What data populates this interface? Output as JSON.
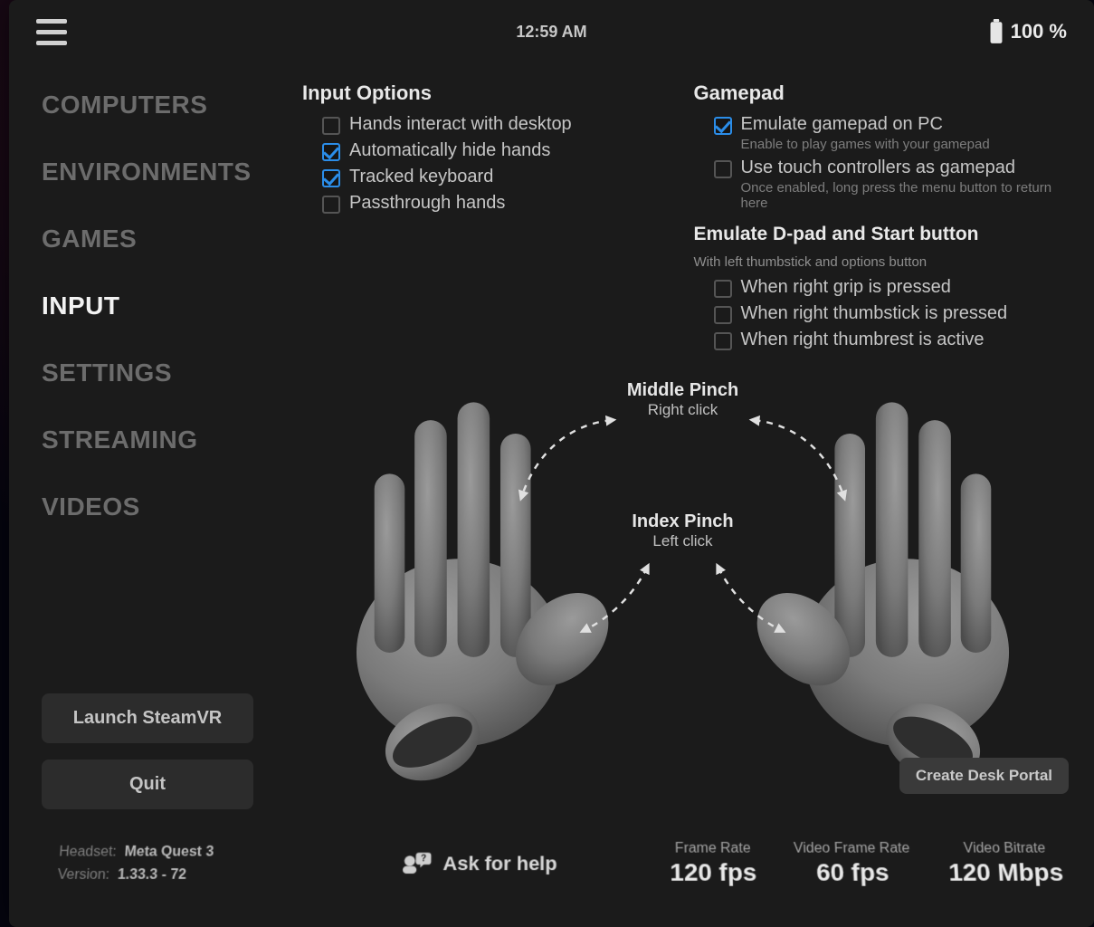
{
  "topbar": {
    "clock": "12:59 AM",
    "battery_pct": "100 %"
  },
  "sidebar": {
    "items": [
      {
        "label": "COMPUTERS"
      },
      {
        "label": "ENVIRONMENTS"
      },
      {
        "label": "GAMES"
      },
      {
        "label": "INPUT"
      },
      {
        "label": "SETTINGS"
      },
      {
        "label": "STREAMING"
      },
      {
        "label": "VIDEOS"
      }
    ],
    "active_index": 3,
    "launch_btn": "Launch SteamVR",
    "quit_btn": "Quit"
  },
  "input_options": {
    "title": "Input Options",
    "items": [
      {
        "label": "Hands interact with desktop",
        "checked": false
      },
      {
        "label": "Automatically hide hands",
        "checked": true
      },
      {
        "label": "Tracked keyboard",
        "checked": true
      },
      {
        "label": "Passthrough hands",
        "checked": false
      }
    ]
  },
  "gamepad": {
    "title": "Gamepad",
    "items": [
      {
        "label": "Emulate gamepad on PC",
        "sub": "Enable to play games with your gamepad",
        "checked": true
      },
      {
        "label": "Use touch controllers as gamepad",
        "sub": "Once enabled, long press the menu button to return here",
        "checked": false
      }
    ],
    "dpad": {
      "title": "Emulate D-pad and Start button",
      "desc": "With left thumbstick and options button",
      "items": [
        {
          "label": "When right grip is pressed",
          "checked": false
        },
        {
          "label": "When right thumbstick is pressed",
          "checked": false
        },
        {
          "label": "When right thumbrest is active",
          "checked": false
        }
      ]
    }
  },
  "gestures": {
    "middle": {
      "title": "Middle Pinch",
      "sub": "Right click"
    },
    "index": {
      "title": "Index Pinch",
      "sub": "Left click"
    },
    "hand_fill": "#7a7a7a",
    "hand_hi": "#999999",
    "hand_lo": "#4a4a4a",
    "arrow_color": "#e0e0e0"
  },
  "portal_btn": "Create Desk Portal",
  "footer": {
    "headset_lbl": "Headset:",
    "headset_val": "Meta Quest 3",
    "version_lbl": "Version:",
    "version_val": "1.33.3 - 72",
    "ask": "Ask for help",
    "stats": [
      {
        "lbl": "Frame Rate",
        "val": "120 fps"
      },
      {
        "lbl": "Video Frame Rate",
        "val": "60 fps"
      },
      {
        "lbl": "Video Bitrate",
        "val": "120 Mbps"
      }
    ]
  },
  "colors": {
    "accent": "#2b8de8",
    "panel": "#1b1b1b",
    "nav_inactive": "#6c6c6c",
    "nav_active": "#f2f2f2",
    "text": "#c6c6c6",
    "subtext": "#7d7d7d"
  }
}
